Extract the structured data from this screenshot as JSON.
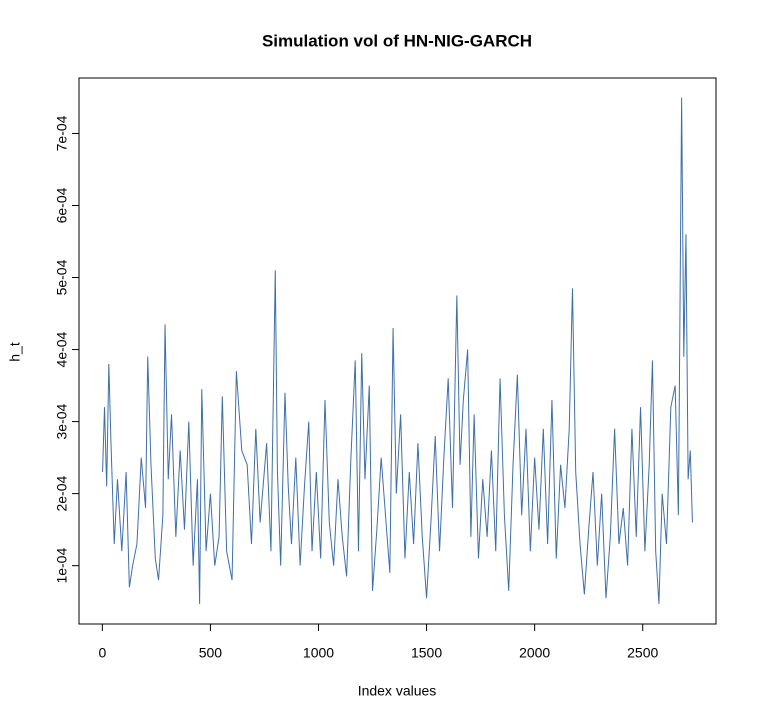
{
  "chart_data": {
    "type": "line",
    "title": "Simulation vol of HN-NIG-GARCH",
    "x_label": "Index values",
    "y_label": "h_t",
    "xlim": [
      -108,
      2839
    ],
    "ylim": [
      1.9e-05,
      0.000777
    ],
    "xticks": [
      0,
      500,
      1000,
      1500,
      2000,
      2500
    ],
    "yticks": [
      {
        "value": 0.0001,
        "label": "1e-04"
      },
      {
        "value": 0.0002,
        "label": "2e-04"
      },
      {
        "value": 0.0003,
        "label": "3e-04"
      },
      {
        "value": 0.0004,
        "label": "4e-04"
      },
      {
        "value": 0.0005,
        "label": "5e-04"
      },
      {
        "value": 0.0006,
        "label": "6e-04"
      },
      {
        "value": 0.0007,
        "label": "7e-04"
      }
    ],
    "series": [
      {
        "color": "#3f6fa8",
        "x": [
          1,
          10,
          20,
          30,
          40,
          55,
          70,
          90,
          110,
          125,
          140,
          160,
          180,
          200,
          210,
          225,
          245,
          260,
          280,
          290,
          305,
          320,
          340,
          360,
          380,
          400,
          420,
          440,
          450,
          460,
          480,
          500,
          520,
          540,
          555,
          575,
          600,
          620,
          645,
          670,
          690,
          710,
          730,
          760,
          780,
          800,
          810,
          825,
          845,
          860,
          875,
          895,
          915,
          935,
          955,
          970,
          990,
          1010,
          1030,
          1050,
          1070,
          1090,
          1110,
          1130,
          1150,
          1170,
          1185,
          1200,
          1215,
          1235,
          1250,
          1270,
          1290,
          1310,
          1330,
          1345,
          1360,
          1380,
          1400,
          1420,
          1440,
          1460,
          1480,
          1500,
          1520,
          1540,
          1560,
          1580,
          1600,
          1620,
          1640,
          1655,
          1670,
          1690,
          1705,
          1720,
          1740,
          1760,
          1780,
          1800,
          1820,
          1840,
          1860,
          1880,
          1900,
          1920,
          1940,
          1960,
          1980,
          2000,
          2020,
          2040,
          2060,
          2080,
          2100,
          2120,
          2140,
          2160,
          2175,
          2190,
          2210,
          2230,
          2250,
          2270,
          2290,
          2310,
          2330,
          2350,
          2370,
          2390,
          2410,
          2430,
          2450,
          2470,
          2490,
          2510,
          2530,
          2545,
          2560,
          2575,
          2590,
          2610,
          2630,
          2650,
          2665,
          2680,
          2690,
          2700,
          2710,
          2720,
          2730
        ],
        "values": [
          0.00023,
          0.00032,
          0.00021,
          0.00038,
          0.00027,
          0.00013,
          0.00022,
          0.00012,
          0.00023,
          7e-05,
          0.0001,
          0.00013,
          0.00025,
          0.00018,
          0.00039,
          0.00024,
          0.00011,
          8e-05,
          0.00017,
          0.000435,
          0.00022,
          0.00031,
          0.00014,
          0.00026,
          0.00015,
          0.0003,
          0.0001,
          0.00022,
          4.7e-05,
          0.000345,
          0.00012,
          0.0002,
          0.0001,
          0.00014,
          0.000335,
          0.00012,
          8e-05,
          0.00037,
          0.00026,
          0.00024,
          0.00013,
          0.00029,
          0.00016,
          0.00027,
          0.00012,
          0.00051,
          0.00023,
          0.0001,
          0.00034,
          0.00021,
          0.00013,
          0.00025,
          0.0001,
          0.00021,
          0.0003,
          0.00012,
          0.00023,
          0.00011,
          0.00033,
          0.00016,
          0.0001,
          0.00022,
          0.00014,
          8.5e-05,
          0.00025,
          0.000385,
          0.00012,
          0.000395,
          0.00022,
          0.00035,
          6.5e-05,
          0.00015,
          0.00025,
          0.00017,
          9e-05,
          0.00043,
          0.0002,
          0.00031,
          0.00011,
          0.00023,
          0.00013,
          0.00027,
          0.00014,
          5.5e-05,
          0.00016,
          0.00028,
          0.00012,
          0.00025,
          0.00036,
          0.00018,
          0.000475,
          0.00024,
          0.00033,
          0.0004,
          0.00014,
          0.00031,
          0.00011,
          0.00022,
          0.00014,
          0.00026,
          0.00012,
          0.00036,
          0.00017,
          6.5e-05,
          0.00024,
          0.000365,
          0.00017,
          0.00029,
          0.00012,
          0.00025,
          0.00015,
          0.00029,
          0.00013,
          0.00033,
          0.00011,
          0.00024,
          0.00018,
          0.00029,
          0.000485,
          0.00023,
          0.00013,
          6e-05,
          0.00015,
          0.00023,
          0.0001,
          0.0002,
          5.5e-05,
          0.00014,
          0.00029,
          0.00013,
          0.00018,
          0.0001,
          0.00029,
          0.00014,
          0.00032,
          0.00012,
          0.00024,
          0.000385,
          0.00012,
          4.7e-05,
          0.0002,
          0.00013,
          0.00032,
          0.00035,
          0.00017,
          0.00075,
          0.00039,
          0.00056,
          0.00022,
          0.00026,
          0.00016
        ]
      }
    ]
  }
}
